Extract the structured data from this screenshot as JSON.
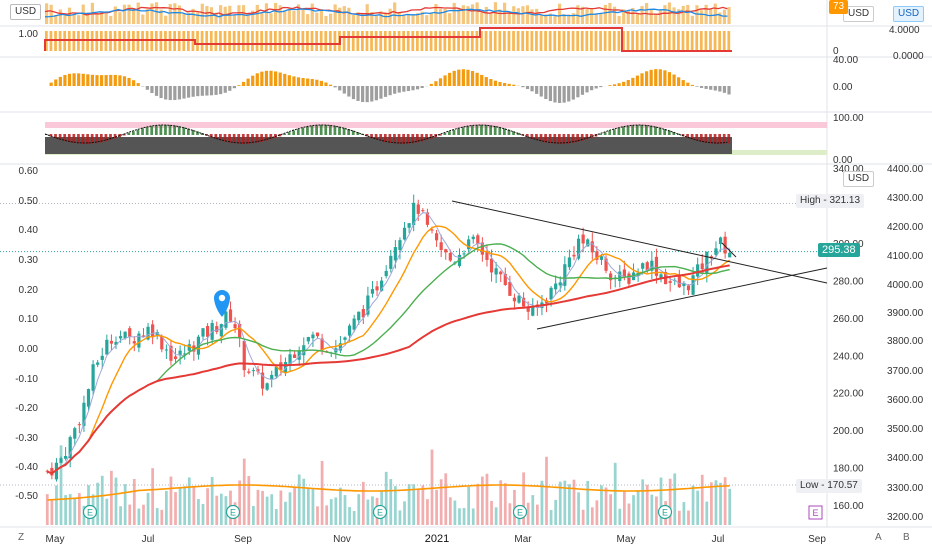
{
  "chart_data": {
    "type": "candlestick",
    "currency_badges": [
      "USD",
      "USD",
      "USD",
      "USD"
    ],
    "price_axis": {
      "ticks": [
        160.0,
        180.0,
        200.0,
        220.0,
        240.0,
        260.0,
        280.0,
        300.0,
        340.0
      ]
    },
    "left_axis": {
      "ticks": [
        "0.60",
        "0.50",
        "0.40",
        "0.30",
        "0.20",
        "0.10",
        "0.00",
        "-0.10",
        "-0.20",
        "-0.30",
        "-0.40",
        "-0.50"
      ],
      "top_value": "1.00"
    },
    "index_axis": {
      "ticks": [
        "4400.00",
        "4300.00",
        "4200.00",
        "4100.00",
        "4000.00",
        "3900.00",
        "3800.00",
        "3700.00",
        "3600.00",
        "3500.00",
        "3400.00",
        "3300.00",
        "3200.00"
      ],
      "top_value": "4.0000",
      "second_value": "0.0000"
    },
    "panel_ticks": {
      "p2": [
        "0"
      ],
      "p3": [
        "40.00",
        "0.00"
      ],
      "p4": [
        "100.00",
        "0.00"
      ]
    },
    "x_axis": {
      "ticks": [
        "May",
        "Jul",
        "Sep",
        "Nov",
        "2021",
        "Mar",
        "May",
        "Jul",
        "Sep"
      ]
    },
    "high": {
      "label": "High",
      "value": "321.13"
    },
    "low": {
      "label": "Low",
      "value": "170.57"
    },
    "last_price": "295.38",
    "top_value_label": "73",
    "earnings_marker": "E",
    "corner_buttons": [
      "Z",
      "A",
      "B"
    ],
    "series": [
      {
        "name": "close",
        "values": [
          178,
          182,
          195,
          210,
          232,
          245,
          252,
          248,
          252,
          255,
          246,
          238,
          242,
          248,
          253,
          258,
          262,
          236,
          228,
          224,
          232,
          240,
          248,
          250,
          246,
          244,
          252,
          262,
          270,
          285,
          300,
          312,
          320,
          305,
          296,
          290,
          298,
          300,
          292,
          282,
          275,
          268,
          262,
          270,
          278,
          290,
          302,
          296,
          290,
          282,
          280,
          286,
          290,
          284,
          278,
          276,
          282,
          292,
          300,
          296
        ]
      }
    ],
    "colors": {
      "up": "#26a69a",
      "down": "#ef5350",
      "ma_fast": "#ff9800",
      "ma_mid": "#4caf50",
      "ma_slow": "#e53935",
      "ma_fastest": "#9fa8da",
      "last": "#26a69a"
    }
  }
}
